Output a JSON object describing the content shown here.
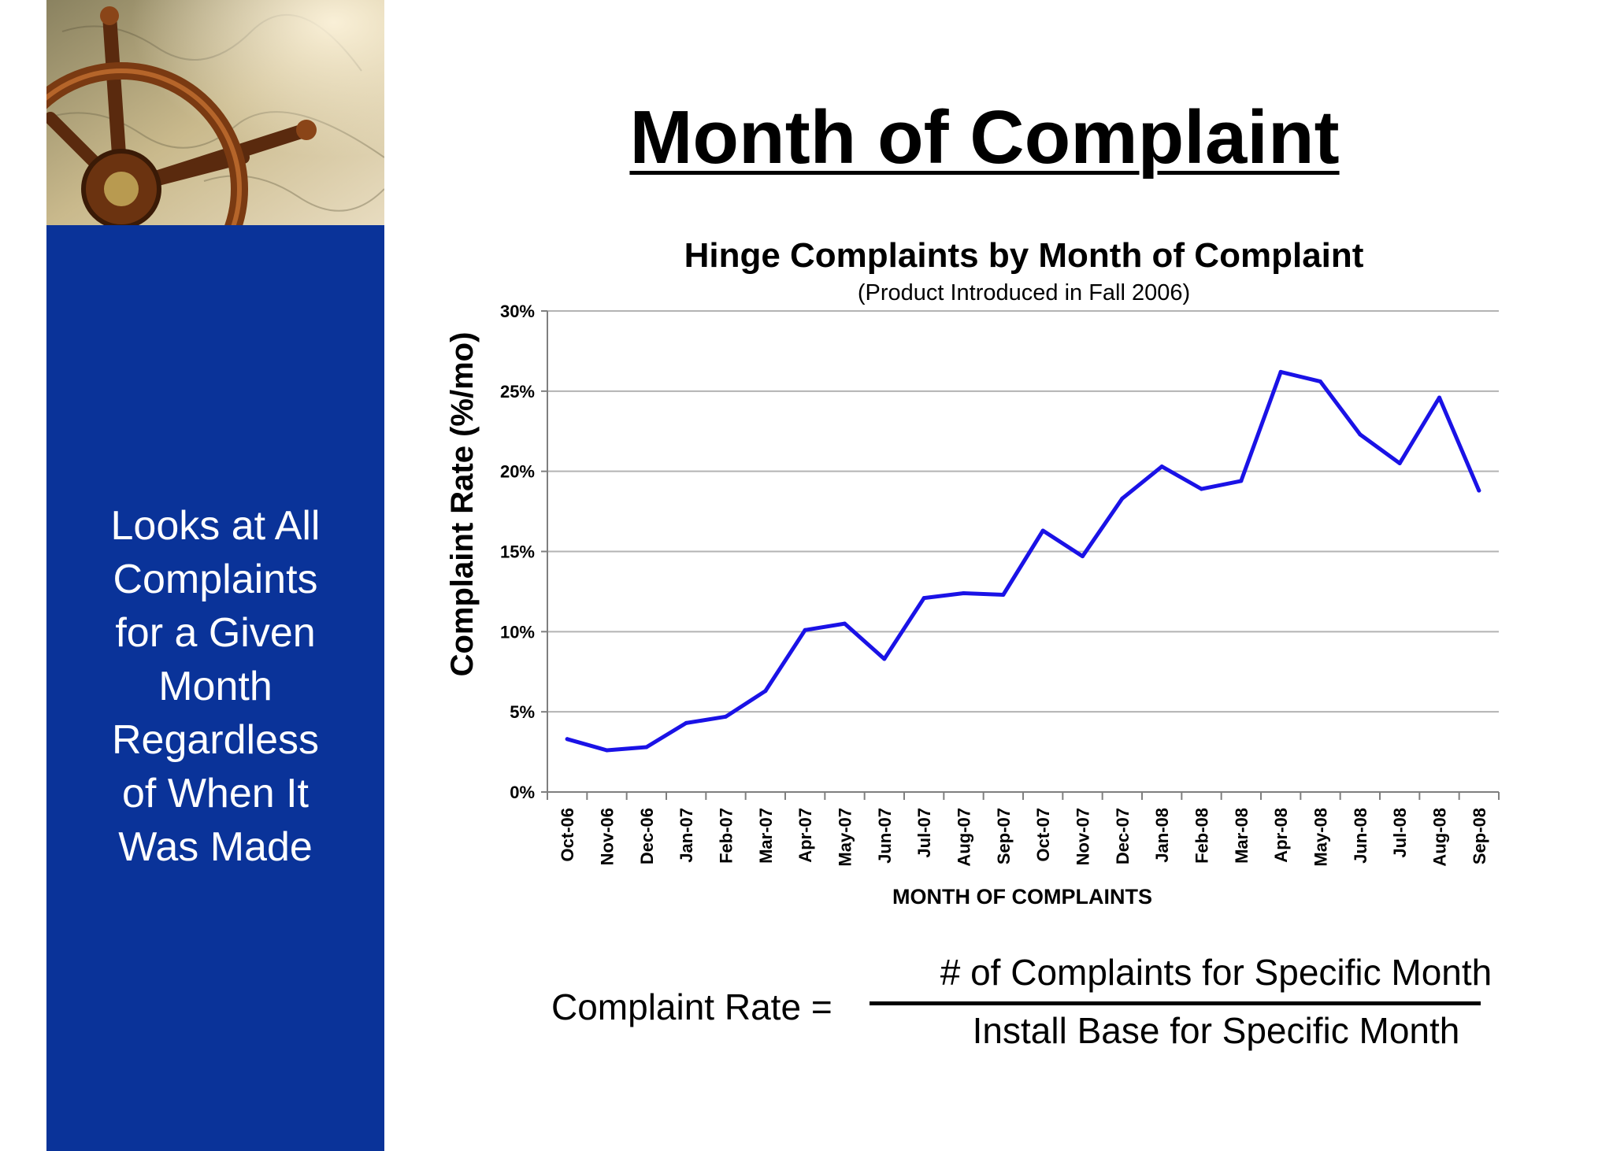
{
  "slide": {
    "title": "Month of Complaint",
    "sidebar_lines": [
      "Looks at All",
      "Complaints",
      "for a Given",
      "Month",
      "Regardless",
      "of When It",
      "Was Made"
    ]
  },
  "colors": {
    "sidebar_blue": "#0a3399",
    "line_blue": "#1a12e6",
    "grid": "#b3b3b3"
  },
  "chart_data": {
    "type": "line",
    "title": "Hinge Complaints by Month of Complaint",
    "subtitle": "(Product Introduced in Fall 2006)",
    "xlabel": "MONTH OF COMPLAINTS",
    "ylabel": "Complaint Rate (%/mo)",
    "ylim": [
      0,
      30
    ],
    "yticks": [
      0,
      5,
      10,
      15,
      20,
      25,
      30
    ],
    "ytick_labels": [
      "0%",
      "5%",
      "10%",
      "15%",
      "20%",
      "25%",
      "30%"
    ],
    "grid": true,
    "legend": "none",
    "categories": [
      "Oct-06",
      "Nov-06",
      "Dec-06",
      "Jan-07",
      "Feb-07",
      "Mar-07",
      "Apr-07",
      "May-07",
      "Jun-07",
      "Jul-07",
      "Aug-07",
      "Sep-07",
      "Oct-07",
      "Nov-07",
      "Dec-07",
      "Jan-08",
      "Feb-08",
      "Mar-08",
      "Apr-08",
      "May-08",
      "Jun-08",
      "Jul-08",
      "Aug-08",
      "Sep-08"
    ],
    "series": [
      {
        "values": [
          3.3,
          2.6,
          2.8,
          4.3,
          4.7,
          6.3,
          10.1,
          10.5,
          8.3,
          12.1,
          12.4,
          12.3,
          16.3,
          14.7,
          18.3,
          20.3,
          18.9,
          19.4,
          26.2,
          25.6,
          22.3,
          20.5,
          24.6,
          18.8
        ]
      }
    ]
  },
  "formula": {
    "lhs": "Complaint Rate =",
    "numerator": "# of Complaints for Specific Month",
    "denominator": "Install Base for Specific Month"
  }
}
